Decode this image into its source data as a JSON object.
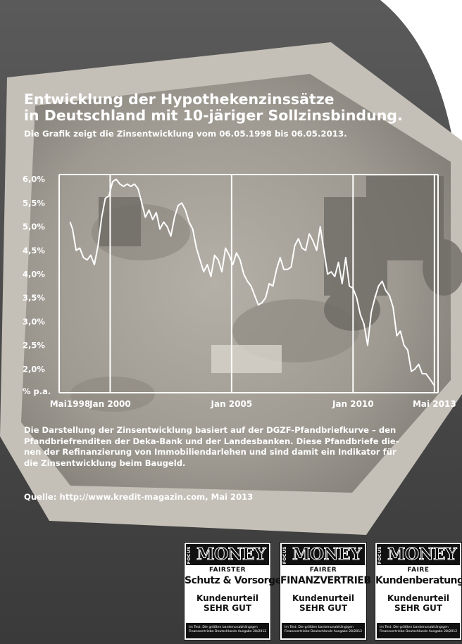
{
  "title_line1": "Entwicklung der Hypothekenzinssätze",
  "title_line2": "in Deutschland mit 10-järiger Sollzinsbindung.",
  "subtitle": "Die Grafik zeigt die Zinsentwicklung vom 06.05.1998 bis 06.05.2013.",
  "chart_data": {
    "type": "line",
    "ylabel": "% p.a.",
    "ylim": [
      1.5,
      6.1
    ],
    "y_ticks": [
      "6,0%",
      "5,5%",
      "5,0%",
      "4,5%",
      "4,0%",
      "3,5%",
      "3,0%",
      "2,5%",
      "2,0%"
    ],
    "y_tick_values": [
      6.0,
      5.5,
      5.0,
      4.5,
      4.0,
      3.5,
      3.0,
      2.5,
      2.0
    ],
    "x_labels": [
      "Mai1998",
      "Jan 2000",
      "Jan 2005",
      "Jan 2010",
      "Mai 2013"
    ],
    "x_label_years": [
      1998.35,
      2000.0,
      2005.0,
      2010.0,
      2013.35
    ],
    "x_range": [
      1997.9,
      2013.5
    ],
    "grid_years": [
      2000.0,
      2005.0,
      2010.0,
      2013.35
    ],
    "grid": true,
    "series": [
      {
        "x": [
          1998.35,
          1998.45,
          1998.6,
          1998.75,
          1998.9,
          1999.05,
          1999.2,
          1999.35,
          1999.5,
          1999.65,
          1999.8,
          1999.95,
          2000.1,
          2000.25,
          2000.4,
          2000.55,
          2000.7,
          2000.85,
          2001.0,
          2001.15,
          2001.3,
          2001.45,
          2001.6,
          2001.75,
          2001.9,
          2002.05,
          2002.2,
          2002.35,
          2002.5,
          2002.65,
          2002.8,
          2002.95,
          2003.1,
          2003.25,
          2003.4,
          2003.55,
          2003.7,
          2003.85,
          2004.0,
          2004.15,
          2004.3,
          2004.45,
          2004.6,
          2004.75,
          2004.9,
          2005.05,
          2005.2,
          2005.35,
          2005.5,
          2005.65,
          2005.8,
          2005.95,
          2006.1,
          2006.25,
          2006.4,
          2006.55,
          2006.7,
          2006.85,
          2007.0,
          2007.15,
          2007.3,
          2007.45,
          2007.6,
          2007.75,
          2007.9,
          2008.05,
          2008.2,
          2008.35,
          2008.5,
          2008.65,
          2008.8,
          2008.95,
          2009.1,
          2009.25,
          2009.4,
          2009.55,
          2009.7,
          2009.85,
          2010.0,
          2010.15,
          2010.3,
          2010.45,
          2010.6,
          2010.75,
          2010.9,
          2011.05,
          2011.2,
          2011.35,
          2011.5,
          2011.65,
          2011.8,
          2011.95,
          2012.1,
          2012.25,
          2012.4,
          2012.55,
          2012.7,
          2012.85,
          2013.0,
          2013.15,
          2013.35
        ],
        "y": [
          5.1,
          4.95,
          4.5,
          4.55,
          4.35,
          4.3,
          4.4,
          4.2,
          4.6,
          5.2,
          5.6,
          5.65,
          5.95,
          6.0,
          5.9,
          5.85,
          5.9,
          5.85,
          5.9,
          5.8,
          5.5,
          5.2,
          5.35,
          5.15,
          5.3,
          4.95,
          5.1,
          5.0,
          4.8,
          5.2,
          5.45,
          5.5,
          5.35,
          5.1,
          4.95,
          4.55,
          4.3,
          4.05,
          4.2,
          3.95,
          4.4,
          4.3,
          4.05,
          4.55,
          4.4,
          4.2,
          4.45,
          4.3,
          4.0,
          3.85,
          3.75,
          3.55,
          3.35,
          3.4,
          3.5,
          3.8,
          3.75,
          4.1,
          4.35,
          4.1,
          4.1,
          4.15,
          4.6,
          4.75,
          4.55,
          4.5,
          4.85,
          4.7,
          4.5,
          5.0,
          4.5,
          4.0,
          4.05,
          3.95,
          4.25,
          3.8,
          4.35,
          3.75,
          3.7,
          3.5,
          3.15,
          2.95,
          2.5,
          3.2,
          3.5,
          3.75,
          3.85,
          3.65,
          3.55,
          3.3,
          2.7,
          2.8,
          2.5,
          2.4,
          1.95,
          2.0,
          2.1,
          1.9,
          1.9,
          1.8,
          1.65
        ]
      }
    ]
  },
  "description_lines": [
    "Die Darstellung der Zinsentwicklung basiert auf der DGZF-Pfandbriefkurve – den",
    "Pfandbriefrenditen der Deka-Bank und der Landesbanken. Diese Pfandbriefe die-",
    "nen der Refinanzierung von Immobiliendarlehen und sind damit ein Indikator für",
    "die Zinsentwicklung beim Baugeld."
  ],
  "source": "Quelle: http://www.kredit-magazin.com, Mai 2013",
  "badges": [
    {
      "focus": "FOCUS",
      "brand": "MONEY",
      "line1": "FAIRSTER",
      "line2": "Schutz & Vorsorge",
      "line3": "Kundenurteil",
      "line4": "SEHR GUT",
      "foot1": "Im Test: Die größten bankenunabhängigen",
      "foot2": "Finanzvertriebe Deutschlands   Ausgabe 28/2012"
    },
    {
      "focus": "FOCUS",
      "brand": "MONEY",
      "line1": "FAIRER",
      "line2": "FINANZVERTRIEB",
      "line3": "Kundenurteil",
      "line4": "SEHR GUT",
      "foot1": "Im Test: Die größten bankenunabhängigen",
      "foot2": "Finanzvertriebe Deutschlands   Ausgabe 28/2012"
    },
    {
      "focus": "FOCUS",
      "brand": "MONEY",
      "line1": "FAIRE",
      "line2": "Kundenberatung",
      "line3": "Kundenurteil",
      "line4": "SEHR GUT",
      "foot1": "Im Test: Die größten bankenunabhängigen",
      "foot2": "Finanzvertriebe Deutschlands   Ausgabe 28/2012"
    }
  ],
  "colors": {
    "text": "#ffffff",
    "background_dark": "#3a3a3a",
    "sand": "#a8a49c",
    "badge_ink": "#111111"
  }
}
